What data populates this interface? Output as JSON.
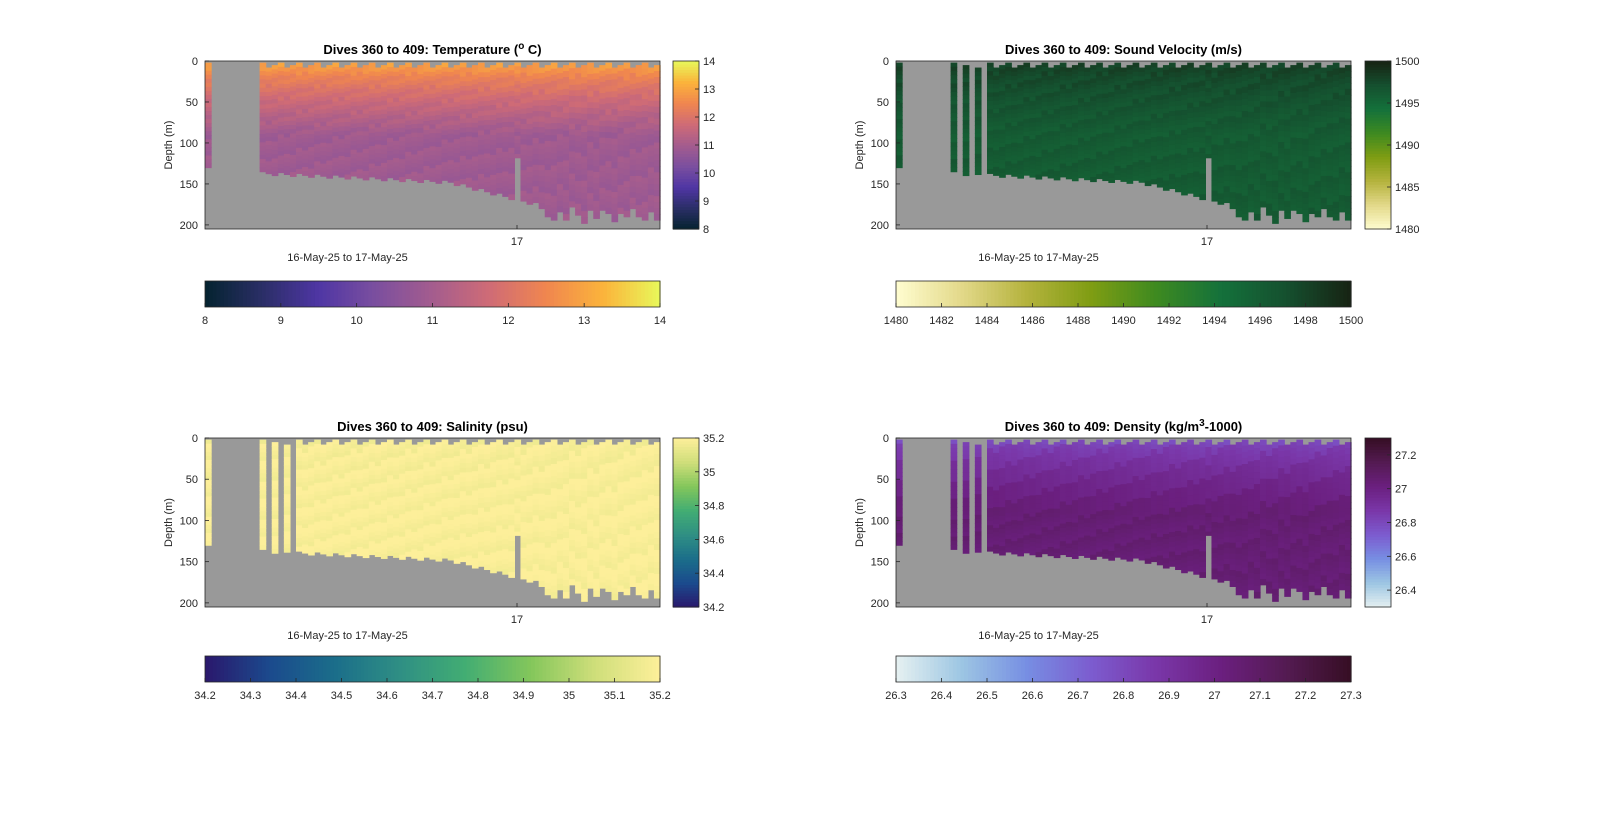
{
  "chart_data": [
    {
      "type": "heatmap",
      "id": "temperature",
      "title": "Dives 360 to 409: Temperature (",
      "title_sup": "o",
      "title_end": " C)",
      "xlabel": "16-May-25 to 17-May-25",
      "ylabel": "Depth (m)",
      "x_tick_labels": [
        "17"
      ],
      "y_ticks": [
        0,
        50,
        100,
        150,
        200
      ],
      "ylim": [
        0,
        205
      ],
      "y_reversed": true,
      "colormap": "thermal",
      "clim": [
        8,
        14
      ],
      "colorbar_vertical_ticks": [
        8,
        9,
        10,
        11,
        12,
        13,
        14
      ],
      "colorbar_horizontal_ticks": [
        8,
        9,
        10,
        11,
        12,
        13,
        14
      ],
      "surface_value": 13.4,
      "deep_value": 10.9,
      "no_data_color": "#999999"
    },
    {
      "type": "heatmap",
      "id": "sound-velocity",
      "title": "Dives 360 to 409: Sound Velocity (m/s)",
      "xlabel": "16-May-25 to 17-May-25",
      "ylabel": "Depth (m)",
      "x_tick_labels": [
        "17"
      ],
      "y_ticks": [
        0,
        50,
        100,
        150,
        200
      ],
      "ylim": [
        0,
        205
      ],
      "y_reversed": true,
      "colormap": "speed",
      "clim": [
        1480,
        1500
      ],
      "colorbar_vertical_ticks": [
        1480,
        1485,
        1490,
        1495,
        1500
      ],
      "colorbar_horizontal_ticks": [
        1480,
        1482,
        1484,
        1486,
        1488,
        1490,
        1492,
        1494,
        1496,
        1498,
        1500
      ],
      "surface_value": 1498.5,
      "deep_value": 1496.2,
      "no_data_color": "#999999"
    },
    {
      "type": "heatmap",
      "id": "salinity",
      "title": "Dives 360 to 409: Salinity (psu)",
      "xlabel": "16-May-25 to 17-May-25",
      "ylabel": "Depth (m)",
      "x_tick_labels": [
        "17"
      ],
      "y_ticks": [
        0,
        50,
        100,
        150,
        200
      ],
      "ylim": [
        0,
        205
      ],
      "y_reversed": true,
      "colormap": "haline",
      "clim": [
        34.2,
        35.2
      ],
      "colorbar_vertical_ticks": [
        34.2,
        34.4,
        34.6,
        34.8,
        35,
        35.2
      ],
      "colorbar_horizontal_ticks": [
        34.2,
        34.3,
        34.4,
        34.5,
        34.6,
        34.7,
        34.8,
        34.9,
        35,
        35.1,
        35.2
      ],
      "surface_value": 35.18,
      "deep_value": 35.19,
      "no_data_color": "#999999"
    },
    {
      "type": "heatmap",
      "id": "density",
      "title": "Dives 360 to 409: Density (kg/m",
      "title_sup": "3",
      "title_end": "-1000)",
      "xlabel": "16-May-25 to 17-May-25",
      "ylabel": "Depth (m)",
      "x_tick_labels": [
        "17"
      ],
      "y_ticks": [
        0,
        50,
        100,
        150,
        200
      ],
      "ylim": [
        0,
        205
      ],
      "y_reversed": true,
      "colormap": "dense",
      "clim": [
        26.3,
        27.3
      ],
      "colorbar_vertical_ticks": [
        26.4,
        26.6,
        26.8,
        27,
        27.2
      ],
      "colorbar_horizontal_ticks": [
        26.3,
        26.4,
        26.5,
        26.6,
        26.7,
        26.8,
        26.9,
        27,
        27.1,
        27.2,
        27.3
      ],
      "surface_value": 26.75,
      "deep_value": 27.05,
      "no_data_color": "#999999"
    }
  ]
}
